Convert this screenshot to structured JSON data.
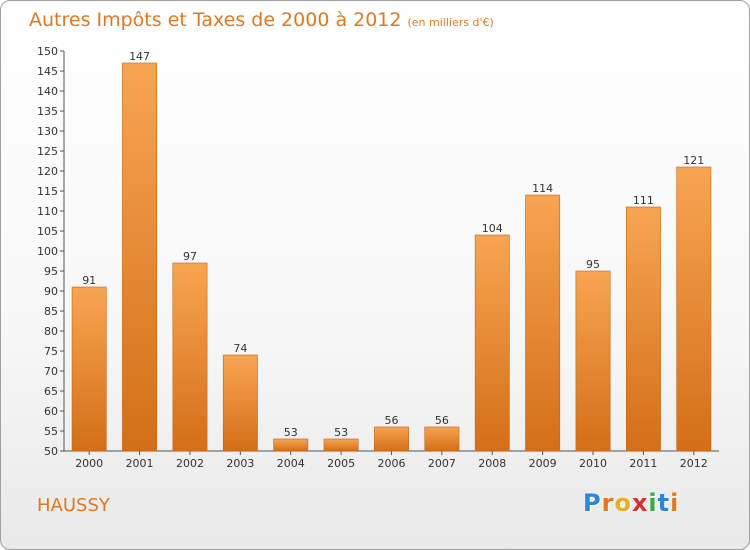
{
  "header": {
    "title": "Autres Impôts et Taxes de 2000 à 2012",
    "unit": "(en milliers d'€)"
  },
  "footer": {
    "commune": "HAUSSY",
    "logo_letters": [
      "P",
      "r",
      "o",
      "x",
      "i",
      "t",
      "i"
    ],
    "logo_colors": [
      "#2f86d6",
      "#e07820",
      "#e8b020",
      "#d83030",
      "#39a845",
      "#2f86d6",
      "#e07820"
    ]
  },
  "chart_data": {
    "type": "bar",
    "title": "Autres Impôts et Taxes de 2000 à 2012",
    "subtitle": "(en milliers d'€)",
    "xlabel": "",
    "ylabel": "",
    "categories": [
      "2000",
      "2001",
      "2002",
      "2003",
      "2004",
      "2005",
      "2006",
      "2007",
      "2008",
      "2009",
      "2010",
      "2011",
      "2012"
    ],
    "values": [
      91,
      147,
      97,
      74,
      53,
      53,
      56,
      56,
      104,
      114,
      95,
      111,
      121
    ],
    "ylim": [
      50,
      150
    ],
    "yticks": [
      50,
      55,
      60,
      65,
      70,
      75,
      80,
      85,
      90,
      95,
      100,
      105,
      110,
      115,
      120,
      125,
      130,
      135,
      140,
      145,
      150
    ],
    "grid": false,
    "legend": "none",
    "bar_color_top": "#f7a552",
    "bar_color_bottom": "#d46e18",
    "bar_edge": "#c86410"
  }
}
